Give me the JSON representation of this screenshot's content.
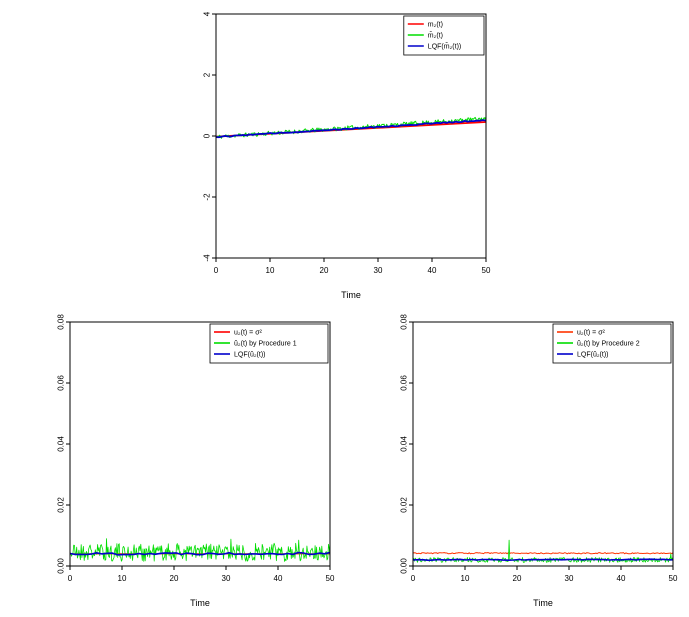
{
  "page": {
    "background": "#ffffff"
  },
  "chart_data": [
    {
      "id": "mean-function-chart",
      "type": "line",
      "title": "",
      "xlabel": "Time",
      "ylabel": "",
      "xlim": [
        0,
        50
      ],
      "ylim": [
        -4,
        4
      ],
      "grid": false,
      "legend_position": "topright",
      "xticks": [
        {
          "v": 0,
          "label": "0"
        },
        {
          "v": 10,
          "label": "10"
        },
        {
          "v": 20,
          "label": "20"
        },
        {
          "v": 30,
          "label": "30"
        },
        {
          "v": 40,
          "label": "40"
        },
        {
          "v": 50,
          "label": "50"
        }
      ],
      "yticks": [
        {
          "v": -4,
          "label": "-4"
        },
        {
          "v": -2,
          "label": "-2"
        },
        {
          "v": 0,
          "label": "0"
        },
        {
          "v": 2,
          "label": "2"
        },
        {
          "v": 4,
          "label": "4"
        }
      ],
      "series": [
        {
          "label": "m₂(t)",
          "color": "#ff0000",
          "y_start": -0.02,
          "y_end": 0.46,
          "noise": 0,
          "points": 2,
          "width": 1.8,
          "seed": 10
        },
        {
          "label": "m̂₂(t)",
          "color": "#00dd00",
          "y_start": -0.03,
          "y_end": 0.57,
          "noise": 0.07,
          "points": 300,
          "width": 1,
          "seed": 11
        },
        {
          "label": "LQF(m̂₂(t))",
          "color": "#0000cc",
          "y_start": -0.03,
          "y_end": 0.52,
          "noise": 0.018,
          "points": 90,
          "width": 1.8,
          "seed": 12
        }
      ]
    },
    {
      "id": "variance-procedure1-chart",
      "type": "line",
      "title": "",
      "xlabel": "Time",
      "ylabel": "",
      "xlim": [
        0,
        50
      ],
      "ylim": [
        0,
        0.08
      ],
      "grid": false,
      "legend_position": "topright",
      "xticks": [
        {
          "v": 0,
          "label": "0"
        },
        {
          "v": 10,
          "label": "10"
        },
        {
          "v": 20,
          "label": "20"
        },
        {
          "v": 30,
          "label": "30"
        },
        {
          "v": 40,
          "label": "40"
        },
        {
          "v": 50,
          "label": "50"
        }
      ],
      "yticks": [
        {
          "v": 0,
          "label": "0.00"
        },
        {
          "v": 0.02,
          "label": "0.02"
        },
        {
          "v": 0.04,
          "label": "0.04"
        },
        {
          "v": 0.06,
          "label": "0.06"
        },
        {
          "v": 0.08,
          "label": "0.08"
        }
      ],
      "series": [
        {
          "label": "u₂(t) = σ²",
          "color": "#ff0000",
          "y_start": 0.004,
          "y_end": 0.004,
          "noise": 0,
          "points": 2,
          "width": 1.2,
          "seed": 20
        },
        {
          "label": "û₂(t) by Procedure 1",
          "color": "#00dd00",
          "y_start": 0.0045,
          "y_end": 0.0045,
          "noise": 0.003,
          "min": 0.0002,
          "points": 350,
          "width": 0.8,
          "seed": 21,
          "spikes": [
            {
              "x": 7,
              "y": 0.009
            },
            {
              "x": 31,
              "y": 0.0088
            },
            {
              "x": 44,
              "y": 0.0085
            }
          ]
        },
        {
          "label": "LQF(û₂(t))",
          "color": "#0000cc",
          "y_start": 0.004,
          "y_end": 0.0042,
          "noise": 0.0004,
          "points": 50,
          "width": 1.6,
          "seed": 22
        }
      ]
    },
    {
      "id": "variance-procedure2-chart",
      "type": "line",
      "title": "",
      "xlabel": "Time",
      "ylabel": "",
      "xlim": [
        0,
        50
      ],
      "ylim": [
        0,
        0.08
      ],
      "grid": false,
      "legend_position": "topright",
      "xticks": [
        {
          "v": 0,
          "label": "0"
        },
        {
          "v": 10,
          "label": "10"
        },
        {
          "v": 20,
          "label": "20"
        },
        {
          "v": 30,
          "label": "30"
        },
        {
          "v": 40,
          "label": "40"
        },
        {
          "v": 50,
          "label": "50"
        }
      ],
      "yticks": [
        {
          "v": 0,
          "label": "0.00"
        },
        {
          "v": 0.02,
          "label": "0.02"
        },
        {
          "v": 0.04,
          "label": "0.04"
        },
        {
          "v": 0.06,
          "label": "0.06"
        },
        {
          "v": 0.08,
          "label": "0.08"
        }
      ],
      "series": [
        {
          "label": "u₂(t) = σ²",
          "color": "#ff3300",
          "y_start": 0.0042,
          "y_end": 0.0042,
          "noise": 0.0002,
          "points": 200,
          "width": 1,
          "seed": 31
        },
        {
          "label": "û₂(t) by Procedure 2",
          "color": "#00dd00",
          "y_start": 0.002,
          "y_end": 0.002,
          "noise": 0.0008,
          "min": 0.0003,
          "points": 350,
          "width": 0.8,
          "seed": 32,
          "spikes": [
            {
              "x": 18.5,
              "y": 0.0085
            },
            {
              "x": 49.5,
              "y": 0.004
            }
          ]
        },
        {
          "label": "LQF(û₂(t))",
          "color": "#0000cc",
          "y_start": 0.002,
          "y_end": 0.0021,
          "noise": 0.00015,
          "points": 50,
          "width": 1.6,
          "seed": 33
        }
      ]
    }
  ]
}
